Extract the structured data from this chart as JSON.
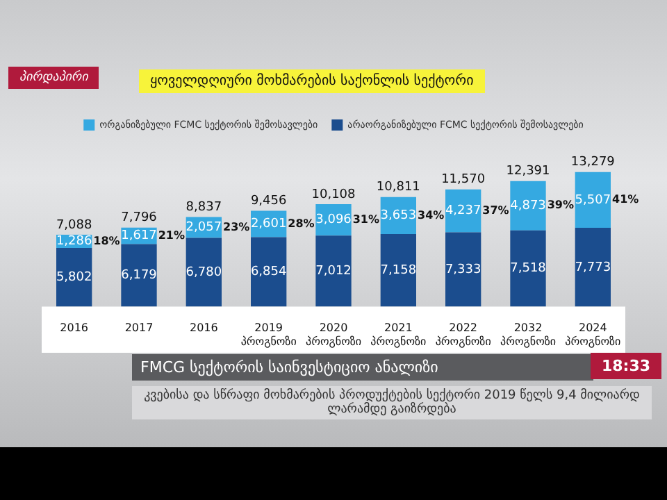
{
  "chart_data": {
    "type": "bar",
    "stacked": true,
    "title": "ყოველდღიური მოხმარების საქონლის სექტორი",
    "subtitle": "FMCG სექტორის საინვესტიციო ანალიზი",
    "categories": [
      "2016",
      "2017",
      "2016",
      "2019\nპროგნოზი",
      "2020\nპროგნოზი",
      "2021\nპროგნოზი",
      "2022\nპროგნოზი",
      "2032\nპროგნოზი",
      "2024\nპროგნოზი"
    ],
    "series": [
      {
        "name": "არაორგანიზებული FCMC სექტორის შემოსავლები",
        "color": "#1b4d8e",
        "values": [
          5802,
          6179,
          6780,
          6854,
          7012,
          7158,
          7333,
          7518,
          7773
        ],
        "value_labels": [
          "5,802",
          "6,179",
          "6,780",
          "6,854",
          "7,012",
          "7,158",
          "7,333",
          "7,518",
          "7,773"
        ]
      },
      {
        "name": "ორგანიზებული FCMC სექტორის შემოსავლები",
        "color": "#35a9e1",
        "values": [
          1286,
          1617,
          2057,
          2601,
          3096,
          3653,
          4237,
          4873,
          5507
        ],
        "value_labels": [
          "1,286",
          "1,617",
          "2,057",
          "2,601",
          "3,096",
          "3,653",
          "4,237",
          "4,873",
          "5,507"
        ]
      }
    ],
    "totals": [
      "7,088",
      "7,796",
      "8,837",
      "9,456",
      "10,108",
      "10,811",
      "11,570",
      "12,391",
      "13,279"
    ],
    "annotations": [
      "პირდაპირი",
      "18:33",
      "კვებისა და სწრაფი მოხმარების პროდუქტების სექტორი 2019 წელს 9,4 მილიარდ ლარამდე გაიზრდება",
      "18%",
      "21%",
      "23%",
      "28%",
      "31%",
      "34%",
      "37%",
      "39%",
      "41%"
    ],
    "legend": "top",
    "tick_labels": "x",
    "grid": false
  }
}
